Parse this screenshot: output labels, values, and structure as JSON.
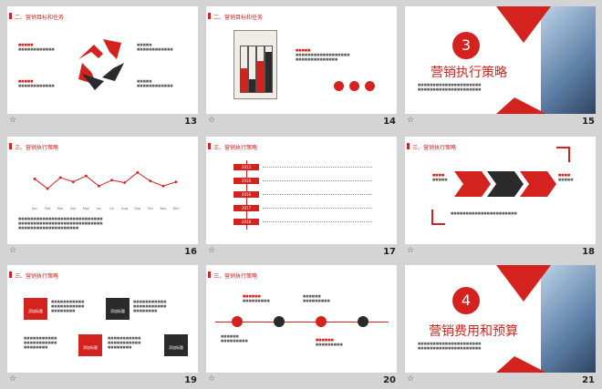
{
  "slides": [
    {
      "num": "13",
      "title": "二、营销目标和任务"
    },
    {
      "num": "14",
      "title": "二、营销目标和任务"
    },
    {
      "num": "15",
      "section_digit": "3",
      "heading": "营销执行策略"
    },
    {
      "num": "16",
      "title": "三、营销执行策略",
      "chart_data": {
        "type": "line",
        "categories": [
          "Jan",
          "Feb",
          "Mar",
          "Apr",
          "May",
          "Jun",
          "Jul",
          "Aug",
          "Sep",
          "Oct",
          "Nov",
          "Dec"
        ],
        "series": [
          {
            "values": [
              5.5,
              3.2,
              5.8,
              4.8,
              6.2,
              3.8,
              5.2,
              4.6,
              7.0,
              5.0,
              3.8,
              4.8
            ]
          }
        ],
        "ylim": [
          0,
          9
        ]
      }
    },
    {
      "num": "17",
      "title": "三、营销执行策略",
      "timeline_years": [
        "2015",
        "2016",
        "2016",
        "2017",
        "2018"
      ]
    },
    {
      "num": "18",
      "title": "三、营销执行策略"
    },
    {
      "num": "19",
      "title": "三、营销执行策略",
      "block_label": "添加标题"
    },
    {
      "num": "20",
      "title": "三、营销执行策略"
    },
    {
      "num": "21",
      "section_digit": "4",
      "heading": "营销费用和预算"
    }
  ],
  "colors": {
    "accent": "#d4231e",
    "dark": "#2b2b2b"
  }
}
